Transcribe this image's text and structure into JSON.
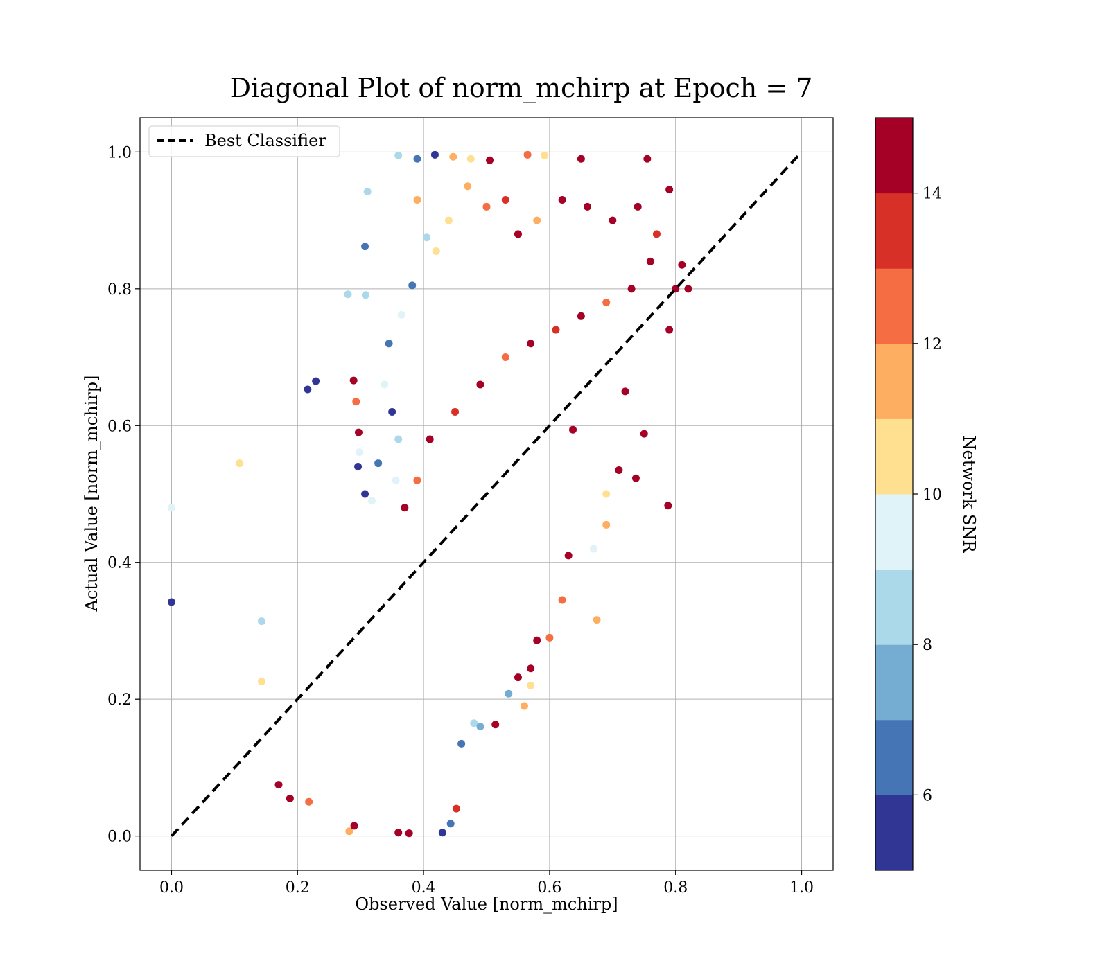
{
  "chart_data": {
    "type": "scatter",
    "title": "Diagonal Plot of norm_mchirp at Epoch = 7",
    "xlabel": "Observed Value [norm_mchirp]",
    "ylabel": "Actual Value [norm_mchirp]",
    "xlim": [
      -0.05,
      1.05
    ],
    "ylim": [
      -0.05,
      1.05
    ],
    "xticks": [
      {
        "value": 0.0,
        "label": "0.0"
      },
      {
        "value": 0.2,
        "label": "0.2"
      },
      {
        "value": 0.4,
        "label": "0.4"
      },
      {
        "value": 0.6,
        "label": "0.6"
      },
      {
        "value": 0.8,
        "label": "0.8"
      },
      {
        "value": 1.0,
        "label": "1.0"
      }
    ],
    "yticks": [
      {
        "value": 0.0,
        "label": "0.0"
      },
      {
        "value": 0.2,
        "label": "0.2"
      },
      {
        "value": 0.4,
        "label": "0.4"
      },
      {
        "value": 0.6,
        "label": "0.6"
      },
      {
        "value": 0.8,
        "label": "0.8"
      },
      {
        "value": 1.0,
        "label": "1.0"
      }
    ],
    "grid": true,
    "legend": {
      "placement": "top-left",
      "entries": [
        "Best Classifier"
      ]
    },
    "reference_line": {
      "name": "Best Classifier",
      "x": [
        0.0,
        1.0
      ],
      "y": [
        0.0,
        1.0
      ],
      "style": "dashed",
      "color": "#000000"
    },
    "colorbar": {
      "label": "Network SNR",
      "range": [
        5,
        15
      ],
      "colors": [
        "#313695",
        "#4575b4",
        "#74add1",
        "#abd9e9",
        "#e0f3f8",
        "#fee090",
        "#fdae61",
        "#f46d43",
        "#d73027",
        "#a50026"
      ],
      "ticks": [
        {
          "value": 6,
          "label": "6"
        },
        {
          "value": 8,
          "label": "8"
        },
        {
          "value": 10,
          "label": "10"
        },
        {
          "value": 12,
          "label": "12"
        },
        {
          "value": 14,
          "label": "14"
        }
      ]
    },
    "points": [
      [
        0.0,
        0.342,
        5.5
      ],
      [
        0.0,
        0.48,
        9.5
      ],
      [
        0.108,
        0.545,
        10.5
      ],
      [
        0.143,
        0.314,
        8.5
      ],
      [
        0.143,
        0.226,
        10.5
      ],
      [
        0.216,
        0.653,
        5.5
      ],
      [
        0.229,
        0.665,
        5.5
      ],
      [
        0.28,
        0.792,
        8.5
      ],
      [
        0.307,
        0.862,
        6.5
      ],
      [
        0.308,
        0.791,
        8.5
      ],
      [
        0.311,
        0.942,
        8.5
      ],
      [
        0.289,
        0.666,
        14.5
      ],
      [
        0.296,
        0.54,
        5.5
      ],
      [
        0.297,
        0.59,
        14.5
      ],
      [
        0.293,
        0.635,
        12.5
      ],
      [
        0.298,
        0.561,
        9.5
      ],
      [
        0.307,
        0.5,
        5.5
      ],
      [
        0.36,
        0.995,
        8.5
      ],
      [
        0.39,
        0.99,
        6.5
      ],
      [
        0.418,
        0.996,
        5.5
      ],
      [
        0.447,
        0.993,
        11.5
      ],
      [
        0.475,
        0.99,
        10.5
      ],
      [
        0.505,
        0.988,
        14.5
      ],
      [
        0.565,
        0.996,
        12.5
      ],
      [
        0.592,
        0.995,
        10.5
      ],
      [
        0.65,
        0.99,
        14.5
      ],
      [
        0.755,
        0.99,
        14.5
      ],
      [
        0.788,
        0.483,
        14.5
      ],
      [
        0.675,
        0.316,
        11.5
      ],
      [
        0.637,
        0.594,
        14.5
      ],
      [
        0.737,
        0.523,
        14.5
      ],
      [
        0.8,
        0.8,
        14.5
      ],
      [
        0.81,
        0.835,
        14.5
      ],
      [
        0.82,
        0.8,
        14.5
      ],
      [
        0.79,
        0.74,
        14.5
      ],
      [
        0.79,
        0.945,
        14.5
      ],
      [
        0.17,
        0.075,
        14.5
      ],
      [
        0.188,
        0.055,
        14.5
      ],
      [
        0.218,
        0.05,
        12.5
      ],
      [
        0.282,
        0.007,
        11.5
      ],
      [
        0.29,
        0.015,
        14.5
      ],
      [
        0.36,
        0.005,
        14.5
      ],
      [
        0.377,
        0.004,
        14.5
      ],
      [
        0.43,
        0.005,
        5.5
      ],
      [
        0.443,
        0.018,
        6.5
      ],
      [
        0.452,
        0.04,
        13.5
      ],
      [
        0.46,
        0.135,
        6.5
      ],
      [
        0.48,
        0.165,
        8.5
      ],
      [
        0.49,
        0.16,
        7.5
      ],
      [
        0.514,
        0.163,
        14.5
      ],
      [
        0.535,
        0.208,
        7.5
      ],
      [
        0.55,
        0.232,
        14.5
      ],
      [
        0.56,
        0.19,
        11.5
      ],
      [
        0.57,
        0.22,
        10.5
      ],
      [
        0.57,
        0.245,
        14.5
      ],
      [
        0.58,
        0.286,
        14.5
      ],
      [
        0.6,
        0.29,
        12.5
      ],
      [
        0.62,
        0.345,
        12.5
      ],
      [
        0.63,
        0.41,
        14.5
      ],
      [
        0.67,
        0.42,
        9.5
      ],
      [
        0.69,
        0.5,
        10.5
      ],
      [
        0.69,
        0.455,
        11.5
      ],
      [
        0.71,
        0.535,
        14.5
      ],
      [
        0.75,
        0.588,
        14.5
      ],
      [
        0.72,
        0.65,
        14.5
      ],
      [
        0.405,
        0.875,
        8.5
      ],
      [
        0.42,
        0.855,
        10.5
      ],
      [
        0.382,
        0.805,
        6.5
      ],
      [
        0.365,
        0.762,
        9.5
      ],
      [
        0.345,
        0.72,
        6.5
      ],
      [
        0.338,
        0.66,
        9.5
      ],
      [
        0.35,
        0.62,
        5.5
      ],
      [
        0.36,
        0.58,
        8.5
      ],
      [
        0.356,
        0.52,
        9.5
      ],
      [
        0.328,
        0.545,
        6.5
      ],
      [
        0.318,
        0.49,
        9.5
      ],
      [
        0.39,
        0.93,
        11.5
      ],
      [
        0.44,
        0.9,
        10.5
      ],
      [
        0.47,
        0.95,
        11.5
      ],
      [
        0.5,
        0.92,
        12.5
      ],
      [
        0.53,
        0.93,
        13.5
      ],
      [
        0.55,
        0.88,
        14.5
      ],
      [
        0.58,
        0.9,
        11.5
      ],
      [
        0.62,
        0.93,
        14.5
      ],
      [
        0.66,
        0.92,
        14.5
      ],
      [
        0.7,
        0.9,
        14.5
      ],
      [
        0.74,
        0.92,
        14.5
      ],
      [
        0.77,
        0.88,
        13.5
      ],
      [
        0.76,
        0.84,
        14.5
      ],
      [
        0.73,
        0.8,
        14.5
      ],
      [
        0.69,
        0.78,
        12.5
      ],
      [
        0.65,
        0.76,
        14.5
      ],
      [
        0.61,
        0.74,
        13.5
      ],
      [
        0.57,
        0.72,
        14.5
      ],
      [
        0.53,
        0.7,
        12.5
      ],
      [
        0.49,
        0.66,
        14.5
      ],
      [
        0.45,
        0.62,
        13.5
      ],
      [
        0.41,
        0.58,
        14.5
      ],
      [
        0.39,
        0.52,
        12.5
      ],
      [
        0.37,
        0.48,
        14.5
      ]
    ]
  }
}
